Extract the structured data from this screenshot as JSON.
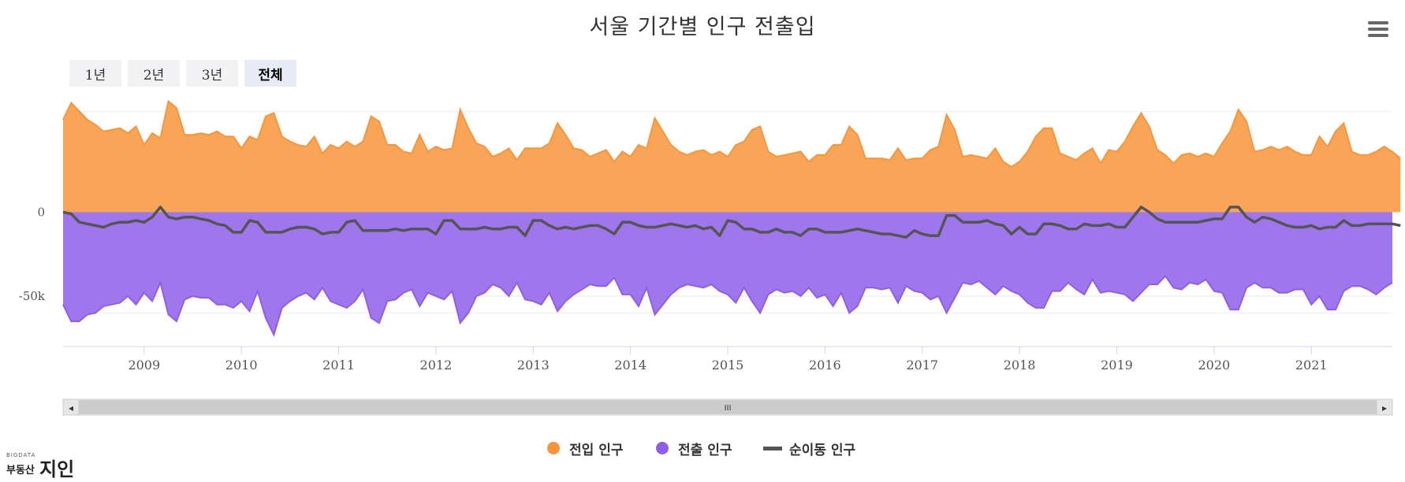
{
  "title": "서울 기간별 인구 전출입",
  "menu_icon": "hamburger-menu-icon",
  "range_buttons": [
    {
      "label": "1년",
      "active": false
    },
    {
      "label": "2년",
      "active": false
    },
    {
      "label": "3년",
      "active": false
    },
    {
      "label": "전체",
      "active": true
    }
  ],
  "scrollbar": {
    "left_arrow": "◂",
    "right_arrow": "▸",
    "grip": "III"
  },
  "legend": [
    {
      "label": "전입 인구",
      "color": "#f7953b",
      "shape": "dot"
    },
    {
      "label": "전출 인구",
      "color": "#8e5ee8",
      "shape": "dot"
    },
    {
      "label": "순이동 인구",
      "color": "#555555",
      "shape": "line"
    }
  ],
  "logo": {
    "small": "BIGDATA",
    "text1": "부동산",
    "text2": "지인"
  },
  "chart_data": {
    "type": "area",
    "title": "서울 기간별 인구 전출입",
    "xlabel": "",
    "ylabel": "",
    "x_range": [
      "2008-03",
      "2021-11"
    ],
    "ylim": [
      -80000,
      70000
    ],
    "y_ticks": [
      {
        "value": 0,
        "label": "0"
      },
      {
        "value": -50000,
        "label": "-50k"
      }
    ],
    "x_ticks": [
      "2009",
      "2010",
      "2011",
      "2012",
      "2013",
      "2014",
      "2015",
      "2016",
      "2017",
      "2018",
      "2019",
      "2020",
      "2021"
    ],
    "grid": true,
    "legend_position": "bottom-center",
    "start": "2008-03",
    "series": [
      {
        "name": "전입 인구",
        "color": "#f7953b",
        "type": "area",
        "values": [
          55000,
          65000,
          60000,
          55000,
          52000,
          48000,
          49000,
          50000,
          47000,
          51000,
          40000,
          47000,
          44000,
          66000,
          62000,
          46000,
          46000,
          47000,
          46000,
          48000,
          45000,
          45000,
          38000,
          45000,
          43000,
          57000,
          59000,
          45000,
          42000,
          40000,
          39000,
          45000,
          35000,
          40000,
          38000,
          42000,
          39000,
          42000,
          57000,
          54000,
          40000,
          40000,
          36000,
          35000,
          46000,
          36000,
          39000,
          37000,
          38000,
          61000,
          50000,
          41000,
          39000,
          33000,
          35000,
          38000,
          31000,
          38000,
          38000,
          38000,
          41000,
          53000,
          46000,
          38000,
          37000,
          33000,
          35000,
          37000,
          30000,
          36000,
          33000,
          40000,
          38000,
          56000,
          48000,
          40000,
          36000,
          34000,
          36000,
          37000,
          34000,
          36000,
          33000,
          40000,
          42000,
          49000,
          51000,
          36000,
          33000,
          34000,
          35000,
          36000,
          30000,
          34000,
          34000,
          40000,
          40000,
          51000,
          46000,
          32000,
          32000,
          32000,
          31000,
          38000,
          31000,
          32000,
          32000,
          37000,
          39000,
          58000,
          49000,
          33000,
          34000,
          33000,
          32000,
          38000,
          30000,
          27000,
          30000,
          36000,
          45000,
          50000,
          50000,
          35000,
          33000,
          31000,
          35000,
          38000,
          29000,
          37000,
          36000,
          42000,
          51000,
          59000,
          51000,
          37000,
          34000,
          29000,
          34000,
          35000,
          33000,
          35000,
          33000,
          41000,
          48000,
          61000,
          54000,
          36000,
          37000,
          39000,
          37000,
          39000,
          36000,
          34000,
          34000,
          45000,
          39000,
          48000,
          53000,
          36000,
          34000,
          34000,
          36000,
          39000,
          36000,
          32000
        ]
      },
      {
        "name": "전출 인구",
        "color": "#8e5ee8",
        "type": "area",
        "values": [
          -55000,
          -65000,
          -65000,
          -61000,
          -60000,
          -56000,
          -55000,
          -54000,
          -50000,
          -55000,
          -48000,
          -53000,
          -42000,
          -61000,
          -65000,
          -52000,
          -50000,
          -51000,
          -51000,
          -55000,
          -55000,
          -57000,
          -53000,
          -59000,
          -47000,
          -63000,
          -73000,
          -57000,
          -53000,
          -50000,
          -48000,
          -52000,
          -45000,
          -53000,
          -55000,
          -57000,
          -53000,
          -46000,
          -63000,
          -66000,
          -53000,
          -52000,
          -48000,
          -46000,
          -56000,
          -48000,
          -50000,
          -52000,
          -47000,
          -66000,
          -60000,
          -50000,
          -48000,
          -43000,
          -45000,
          -50000,
          -42000,
          -52000,
          -53000,
          -55000,
          -48000,
          -59000,
          -53000,
          -49000,
          -46000,
          -43000,
          -44000,
          -44000,
          -39000,
          -49000,
          -49000,
          -56000,
          -45000,
          -61000,
          -55000,
          -49000,
          -45000,
          -43000,
          -44000,
          -45000,
          -43000,
          -47000,
          -49000,
          -54000,
          -45000,
          -53000,
          -60000,
          -49000,
          -46000,
          -48000,
          -47000,
          -50000,
          -45000,
          -51000,
          -49000,
          -56000,
          -48000,
          -60000,
          -56000,
          -45000,
          -45000,
          -46000,
          -45000,
          -54000,
          -44000,
          -47000,
          -48000,
          -52000,
          -50000,
          -60000,
          -51000,
          -42000,
          -43000,
          -41000,
          -45000,
          -49000,
          -44000,
          -47000,
          -49000,
          -54000,
          -57000,
          -57000,
          -47000,
          -47000,
          -42000,
          -46000,
          -49000,
          -40000,
          -48000,
          -47000,
          -48000,
          -49000,
          -53000,
          -48000,
          -43000,
          -43000,
          -38000,
          -45000,
          -46000,
          -42000,
          -43000,
          -40000,
          -47000,
          -48000,
          -58000,
          -58000,
          -45000,
          -42000,
          -45000,
          -45000,
          -48000,
          -48000,
          -46000,
          -46000,
          -55000,
          -50000,
          -58000,
          -58000,
          -47000,
          -44000,
          -44000,
          -46000,
          -49000,
          -45000,
          -42000
        ]
      },
      {
        "name": "순이동 인구",
        "color": "#555555",
        "type": "line",
        "values": [
          0,
          -1000,
          -6000,
          -7000,
          -8000,
          -9000,
          -7000,
          -6000,
          -6000,
          -5000,
          -6000,
          -3000,
          3000,
          -3000,
          -4000,
          -3000,
          -3000,
          -4000,
          -5000,
          -7000,
          -8000,
          -12000,
          -12000,
          -5000,
          -6000,
          -12000,
          -12000,
          -12000,
          -10000,
          -9000,
          -9000,
          -10000,
          -13000,
          -12000,
          -12000,
          -6000,
          -5000,
          -11000,
          -11000,
          -11000,
          -11000,
          -10000,
          -11000,
          -10000,
          -10000,
          -10000,
          -13000,
          -5000,
          -5000,
          -10000,
          -10000,
          -10000,
          -9000,
          -10000,
          -10000,
          -9000,
          -9000,
          -14000,
          -5000,
          -5000,
          -8000,
          -10000,
          -9000,
          -10000,
          -9000,
          -8000,
          -8000,
          -10000,
          -13000,
          -6000,
          -6000,
          -8000,
          -9000,
          -9000,
          -8000,
          -7000,
          -8000,
          -9000,
          -8000,
          -10000,
          -9000,
          -14000,
          -5000,
          -6000,
          -10000,
          -10000,
          -12000,
          -12000,
          -10000,
          -12000,
          -12000,
          -14000,
          -10000,
          -10000,
          -12000,
          -12000,
          -12000,
          -11000,
          -10000,
          -11000,
          -12000,
          -13000,
          -13000,
          -14000,
          -15000,
          -11000,
          -13000,
          -14000,
          -14000,
          -2000,
          -2000,
          -6000,
          -6000,
          -6000,
          -5000,
          -7000,
          -8000,
          -13000,
          -9000,
          -13000,
          -13000,
          -7000,
          -7000,
          -8000,
          -10000,
          -10000,
          -7000,
          -8000,
          -8000,
          -7000,
          -9000,
          -9000,
          -3000,
          3000,
          0,
          -4000,
          -6000,
          -6000,
          -6000,
          -6000,
          -6000,
          -5000,
          -4000,
          -4000,
          3000,
          3000,
          -3000,
          -6000,
          -3000,
          -4000,
          -6000,
          -8000,
          -9000,
          -9000,
          -8000,
          -10000,
          -9000,
          -9000,
          -5000,
          -8000,
          -8000,
          -7000,
          -7000,
          -7000,
          -7000,
          -8000
        ]
      }
    ]
  }
}
